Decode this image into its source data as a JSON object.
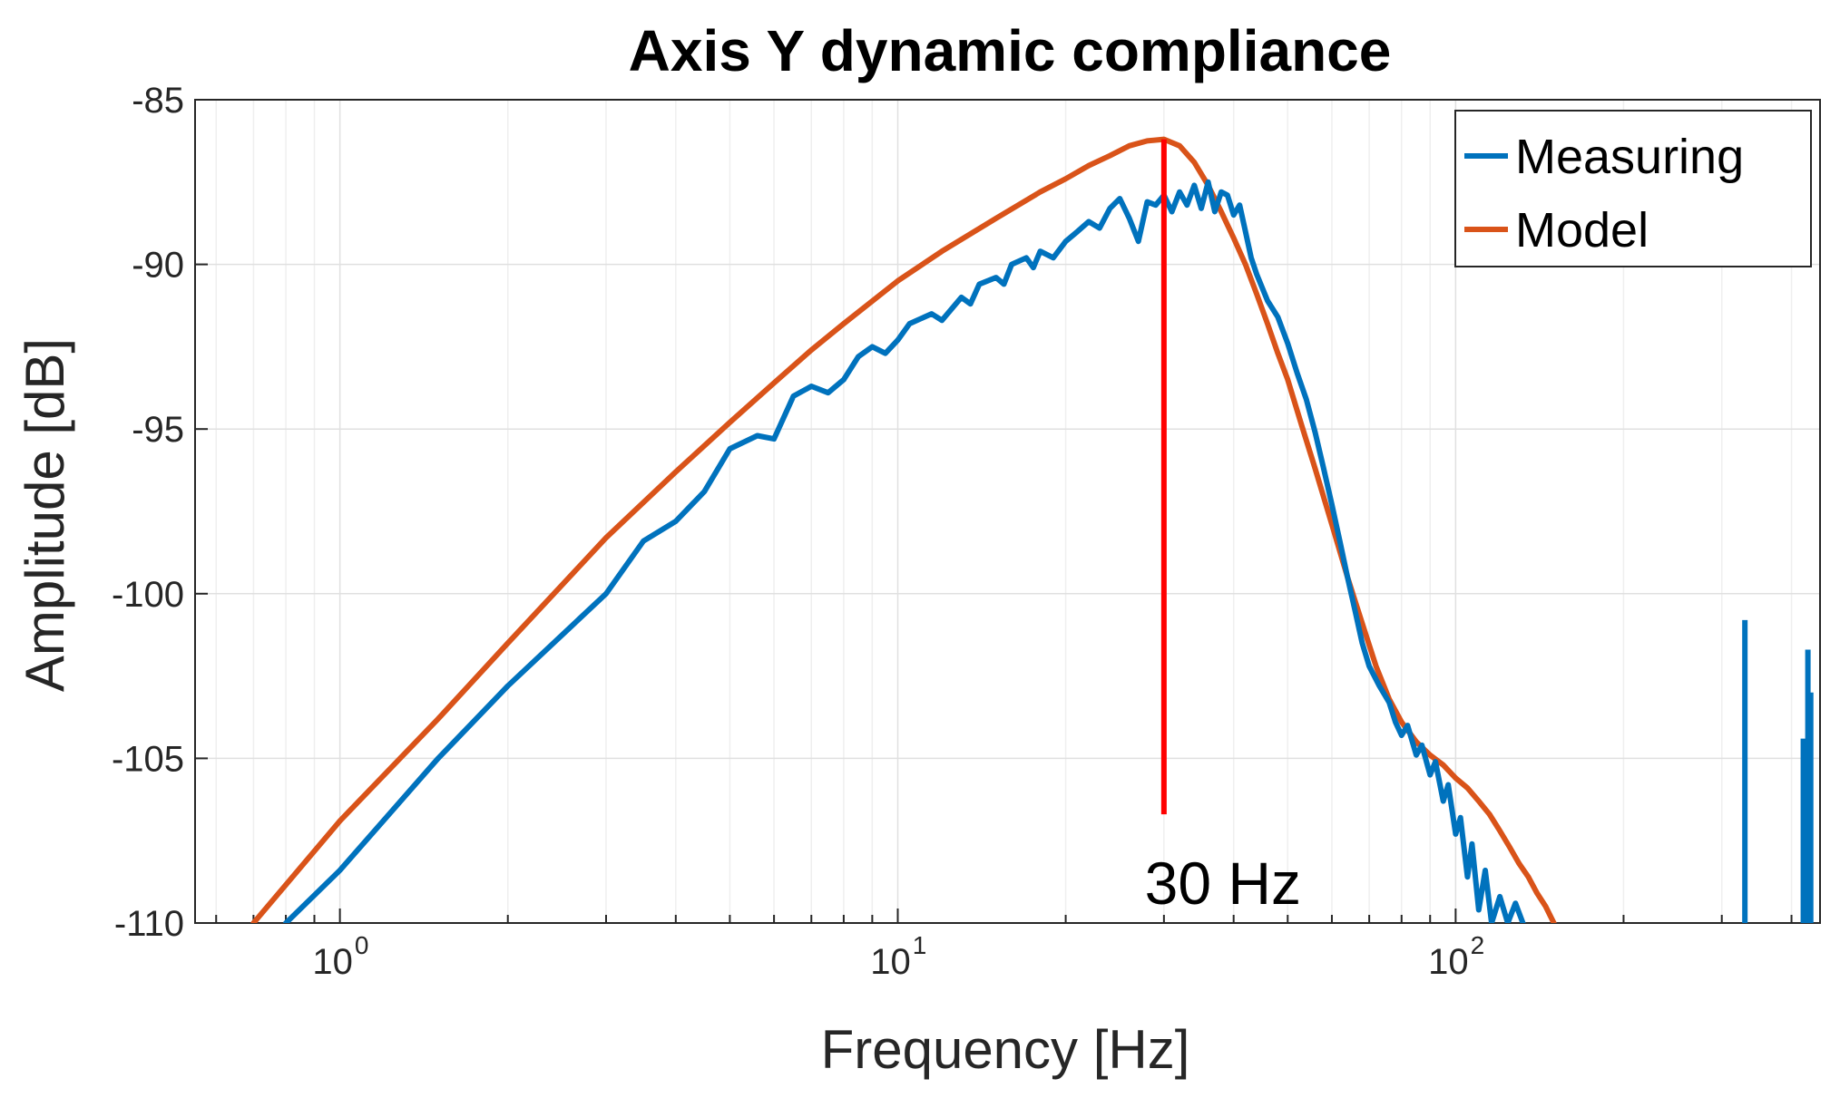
{
  "chart_data": {
    "type": "line",
    "title": "Axis Y dynamic compliance",
    "xlabel": "Frequency [Hz]",
    "ylabel": "Amplitude [dB]",
    "x_scale": "log",
    "xlim": [
      0.55,
      450
    ],
    "ylim": [
      -110,
      -85
    ],
    "grid": true,
    "legend_position": "top-right",
    "x_ticks": [
      {
        "base": "10",
        "exp": "0",
        "value": 1
      },
      {
        "base": "10",
        "exp": "1",
        "value": 10
      },
      {
        "base": "10",
        "exp": "2",
        "value": 100
      }
    ],
    "y_ticks": [
      "-85",
      "-90",
      "-95",
      "-100",
      "-105",
      "-110"
    ],
    "y_tick_values": [
      -85,
      -90,
      -95,
      -100,
      -105,
      -110
    ],
    "annotation": {
      "text": "30 Hz",
      "x": 30,
      "y_top": -86.2,
      "y_bottom": -106.7,
      "color": "#ff0000"
    },
    "series": [
      {
        "name": "Measuring",
        "color": "#0072bd",
        "points": [
          [
            0.8,
            -110
          ],
          [
            1.0,
            -108.4
          ],
          [
            1.5,
            -105
          ],
          [
            2.0,
            -102.8
          ],
          [
            3.0,
            -100
          ],
          [
            3.5,
            -98.4
          ],
          [
            4.0,
            -97.8
          ],
          [
            4.5,
            -96.9
          ],
          [
            5.0,
            -95.6
          ],
          [
            5.6,
            -95.2
          ],
          [
            6.0,
            -95.3
          ],
          [
            6.5,
            -94.0
          ],
          [
            7.0,
            -93.7
          ],
          [
            7.5,
            -93.9
          ],
          [
            8.0,
            -93.5
          ],
          [
            8.5,
            -92.8
          ],
          [
            9.0,
            -92.5
          ],
          [
            9.5,
            -92.7
          ],
          [
            10.0,
            -92.3
          ],
          [
            10.5,
            -91.8
          ],
          [
            11.5,
            -91.5
          ],
          [
            12.0,
            -91.7
          ],
          [
            13.0,
            -91.0
          ],
          [
            13.5,
            -91.2
          ],
          [
            14.0,
            -90.6
          ],
          [
            15.0,
            -90.4
          ],
          [
            15.5,
            -90.6
          ],
          [
            16.0,
            -90.0
          ],
          [
            17.0,
            -89.8
          ],
          [
            17.5,
            -90.1
          ],
          [
            18.0,
            -89.6
          ],
          [
            19.0,
            -89.8
          ],
          [
            20.0,
            -89.3
          ],
          [
            21.0,
            -89.0
          ],
          [
            22.0,
            -88.7
          ],
          [
            23.0,
            -88.9
          ],
          [
            24.0,
            -88.3
          ],
          [
            25.0,
            -88.0
          ],
          [
            26.0,
            -88.6
          ],
          [
            27.0,
            -89.3
          ],
          [
            28.0,
            -88.1
          ],
          [
            29.0,
            -88.2
          ],
          [
            30.0,
            -87.9
          ],
          [
            31.0,
            -88.4
          ],
          [
            32.0,
            -87.8
          ],
          [
            33.0,
            -88.2
          ],
          [
            34.0,
            -87.6
          ],
          [
            35.0,
            -88.3
          ],
          [
            36.0,
            -87.5
          ],
          [
            37.0,
            -88.4
          ],
          [
            38.0,
            -87.8
          ],
          [
            39.0,
            -87.9
          ],
          [
            40.0,
            -88.5
          ],
          [
            41.0,
            -88.2
          ],
          [
            42.0,
            -89.0
          ],
          [
            43.0,
            -89.8
          ],
          [
            44.0,
            -90.3
          ],
          [
            46.0,
            -91.1
          ],
          [
            48.0,
            -91.6
          ],
          [
            50.0,
            -92.4
          ],
          [
            52.0,
            -93.3
          ],
          [
            54.0,
            -94.1
          ],
          [
            56.0,
            -95.1
          ],
          [
            58.0,
            -96.2
          ],
          [
            60.0,
            -97.3
          ],
          [
            62.0,
            -98.4
          ],
          [
            64.0,
            -99.5
          ],
          [
            66.0,
            -100.5
          ],
          [
            68.0,
            -101.5
          ],
          [
            70.0,
            -102.2
          ],
          [
            73.0,
            -102.8
          ],
          [
            76.0,
            -103.3
          ],
          [
            78.0,
            -103.9
          ],
          [
            80.0,
            -104.3
          ],
          [
            82.0,
            -104.0
          ],
          [
            85.0,
            -104.9
          ],
          [
            87.0,
            -104.6
          ],
          [
            90.0,
            -105.5
          ],
          [
            92.0,
            -105.1
          ],
          [
            95.0,
            -106.3
          ],
          [
            97.0,
            -105.8
          ],
          [
            100.0,
            -107.3
          ],
          [
            102.0,
            -106.8
          ],
          [
            105.0,
            -108.6
          ],
          [
            107.0,
            -107.6
          ],
          [
            110.0,
            -109.6
          ],
          [
            113.0,
            -108.4
          ],
          [
            116.0,
            -110
          ],
          [
            120.0,
            -109.2
          ],
          [
            124.0,
            -110
          ],
          [
            128.0,
            -109.4
          ],
          [
            132.0,
            -110
          ]
        ],
        "spikes": [
          {
            "x": 330,
            "top": -100.8
          },
          {
            "x": 420,
            "top": -104.4
          },
          {
            "x": 428,
            "top": -101.7
          },
          {
            "x": 433,
            "top": -103.0
          }
        ]
      },
      {
        "name": "Model",
        "color": "#d95319",
        "points": [
          [
            0.7,
            -110
          ],
          [
            1.0,
            -106.9
          ],
          [
            1.5,
            -103.8
          ],
          [
            2.0,
            -101.5
          ],
          [
            3.0,
            -98.3
          ],
          [
            4.0,
            -96.3
          ],
          [
            5.0,
            -94.8
          ],
          [
            6.0,
            -93.6
          ],
          [
            7.0,
            -92.6
          ],
          [
            8.0,
            -91.8
          ],
          [
            10.0,
            -90.5
          ],
          [
            12.0,
            -89.6
          ],
          [
            15.0,
            -88.6
          ],
          [
            18.0,
            -87.8
          ],
          [
            20.0,
            -87.4
          ],
          [
            22.0,
            -87.0
          ],
          [
            24.0,
            -86.7
          ],
          [
            26.0,
            -86.4
          ],
          [
            28.0,
            -86.25
          ],
          [
            30.0,
            -86.2
          ],
          [
            32.0,
            -86.4
          ],
          [
            34.0,
            -86.9
          ],
          [
            36.0,
            -87.6
          ],
          [
            38.0,
            -88.4
          ],
          [
            40.0,
            -89.2
          ],
          [
            42.0,
            -90.0
          ],
          [
            44.0,
            -90.9
          ],
          [
            46.0,
            -91.8
          ],
          [
            48.0,
            -92.7
          ],
          [
            50.0,
            -93.5
          ],
          [
            53.0,
            -94.9
          ],
          [
            56.0,
            -96.2
          ],
          [
            60.0,
            -97.9
          ],
          [
            64.0,
            -99.5
          ],
          [
            68.0,
            -100.9
          ],
          [
            72.0,
            -102.2
          ],
          [
            76.0,
            -103.2
          ],
          [
            80.0,
            -103.9
          ],
          [
            85.0,
            -104.5
          ],
          [
            90.0,
            -104.9
          ],
          [
            95.0,
            -105.2
          ],
          [
            100.0,
            -105.6
          ],
          [
            105.0,
            -105.9
          ],
          [
            110.0,
            -106.3
          ],
          [
            115.0,
            -106.7
          ],
          [
            120.0,
            -107.2
          ],
          [
            125.0,
            -107.7
          ],
          [
            130.0,
            -108.2
          ],
          [
            135.0,
            -108.6
          ],
          [
            140.0,
            -109.1
          ],
          [
            145.0,
            -109.5
          ],
          [
            150.0,
            -110
          ]
        ]
      }
    ]
  }
}
